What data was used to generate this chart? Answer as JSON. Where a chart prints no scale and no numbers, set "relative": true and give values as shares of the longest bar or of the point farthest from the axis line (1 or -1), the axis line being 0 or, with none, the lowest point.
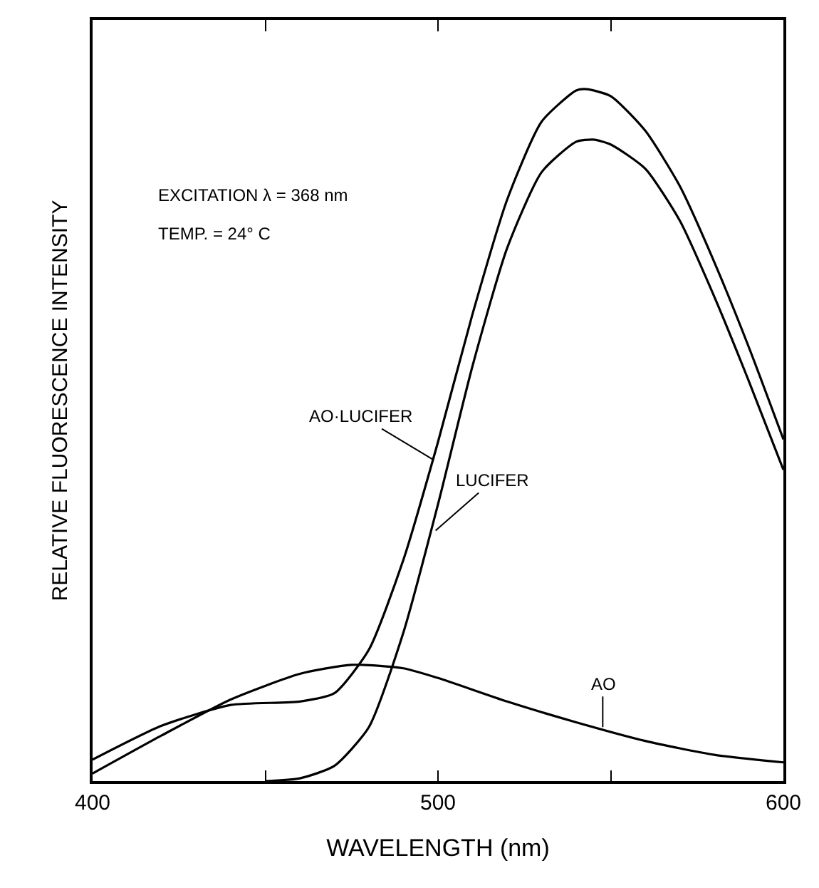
{
  "chart_data": {
    "type": "line",
    "relative": true,
    "xlabel": "WAVELENGTH (nm)",
    "ylabel": "RELATIVE FLUORESCENCE INTENSITY",
    "xlim": [
      400,
      600
    ],
    "xticks": [
      400,
      {
        "value": 450,
        "label": null
      },
      500,
      {
        "value": 550,
        "label": null
      },
      600
    ],
    "tick_labels": "x",
    "marker": "none",
    "line_style": "solid",
    "series": [
      {
        "color": "#000000",
        "x": [
          400,
          420,
          440,
          460,
          470,
          480,
          490,
          500,
          510,
          520,
          530,
          540,
          543,
          550,
          560,
          570,
          580,
          590,
          600
        ],
        "values": [
          0.031,
          0.08,
          0.11,
          0.115,
          0.127,
          0.19,
          0.32,
          0.49,
          0.675,
          0.84,
          0.953,
          0.998,
          1.0,
          0.99,
          0.94,
          0.86,
          0.75,
          0.627,
          0.494
        ]
      },
      {
        "color": "#000000",
        "x": [
          450,
          460,
          470,
          480,
          490,
          500,
          510,
          520,
          530,
          540,
          545,
          550,
          560,
          570,
          580,
          590,
          600
        ],
        "values": [
          0.0,
          0.004,
          0.022,
          0.078,
          0.215,
          0.4,
          0.6,
          0.77,
          0.88,
          0.924,
          0.927,
          0.92,
          0.885,
          0.81,
          0.7,
          0.578,
          0.45
        ]
      },
      {
        "color": "#000000",
        "x": [
          400,
          420,
          440,
          460,
          475,
          490,
          500,
          520,
          540,
          560,
          580,
          600
        ],
        "values": [
          0.011,
          0.066,
          0.118,
          0.155,
          0.168,
          0.163,
          0.149,
          0.115,
          0.085,
          0.058,
          0.038,
          0.027
        ]
      }
    ],
    "annotations": [
      "EXCITATION λ = 368 nm",
      "TEMP. = 24° C",
      {
        "text": "AO·LUCIFER",
        "x": 498.5,
        "y": 0.465
      },
      {
        "text": "LUCIFER",
        "x": 499.3,
        "y": 0.362
      },
      {
        "text": "AO",
        "x": 547.7,
        "y": 0.078
      }
    ]
  }
}
